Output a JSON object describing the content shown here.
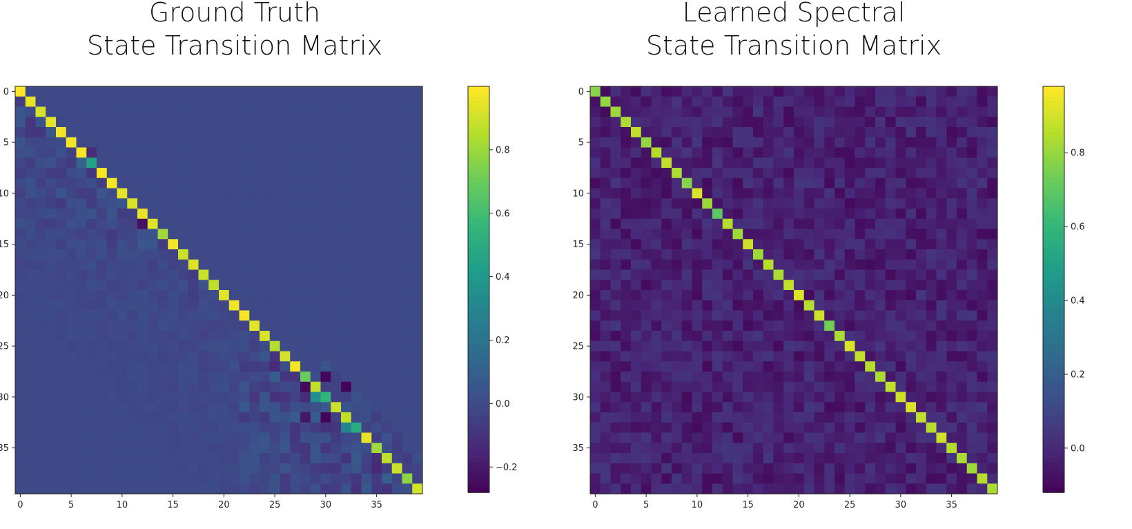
{
  "chart_data": [
    {
      "type": "heatmap",
      "title_line1": "Ground Truth",
      "title_line2": "State Transition Matrix",
      "size": 40,
      "xticks": [
        "0",
        "5",
        "10",
        "15",
        "20",
        "25",
        "30",
        "35"
      ],
      "yticks": [
        "0",
        "5",
        "10",
        "15",
        "20",
        "25",
        "30",
        "35"
      ],
      "colorbar": {
        "min": -0.28,
        "max": 1.0,
        "ticks": [
          "−0.2",
          "0.0",
          "0.2",
          "0.4",
          "0.6",
          "0.8"
        ],
        "tick_values": [
          -0.2,
          0.0,
          0.2,
          0.4,
          0.6,
          0.8
        ]
      },
      "background_value": 0.0,
      "diagonal": [
        1.0,
        0.96,
        0.92,
        0.95,
        0.98,
        0.98,
        0.99,
        0.45,
        0.99,
        0.98,
        0.96,
        0.93,
        0.96,
        0.94,
        0.82,
        0.98,
        0.9,
        0.94,
        0.9,
        0.88,
        0.95,
        0.97,
        0.99,
        0.95,
        0.93,
        0.86,
        0.92,
        0.98,
        0.7,
        0.88,
        0.55,
        0.9,
        0.88,
        0.5,
        0.96,
        0.82,
        0.88,
        0.9,
        0.78,
        0.92
      ],
      "offdiag_pattern": "block-structured perturbations near diagonal; strongest in rows 28-34, mostly in range -0.27 to 0.25"
    },
    {
      "type": "heatmap",
      "title_line1": "Learned Spectral",
      "title_line2": "State Transition Matrix",
      "size": 40,
      "xticks": [
        "0",
        "5",
        "10",
        "15",
        "20",
        "25",
        "30",
        "35"
      ],
      "yticks": [
        "0",
        "5",
        "10",
        "15",
        "20",
        "25",
        "30",
        "35"
      ],
      "colorbar": {
        "min": -0.12,
        "max": 0.98,
        "ticks": [
          "0.0",
          "0.2",
          "0.4",
          "0.6",
          "0.8"
        ],
        "tick_values": [
          0.0,
          0.2,
          0.4,
          0.6,
          0.8
        ]
      },
      "background_value": -0.02,
      "diagonal": [
        0.78,
        0.8,
        0.82,
        0.84,
        0.88,
        0.8,
        0.86,
        0.88,
        0.84,
        0.78,
        0.92,
        0.82,
        0.7,
        0.86,
        0.82,
        0.9,
        0.82,
        0.86,
        0.84,
        0.88,
        0.92,
        0.86,
        0.9,
        0.74,
        0.84,
        0.92,
        0.88,
        0.86,
        0.84,
        0.88,
        0.9,
        0.92,
        0.88,
        0.86,
        0.9,
        0.86,
        0.84,
        0.82,
        0.86,
        0.84
      ],
      "offdiag_pattern": "uniform noise around -0.02 with values between -0.10 and 0.10"
    }
  ]
}
